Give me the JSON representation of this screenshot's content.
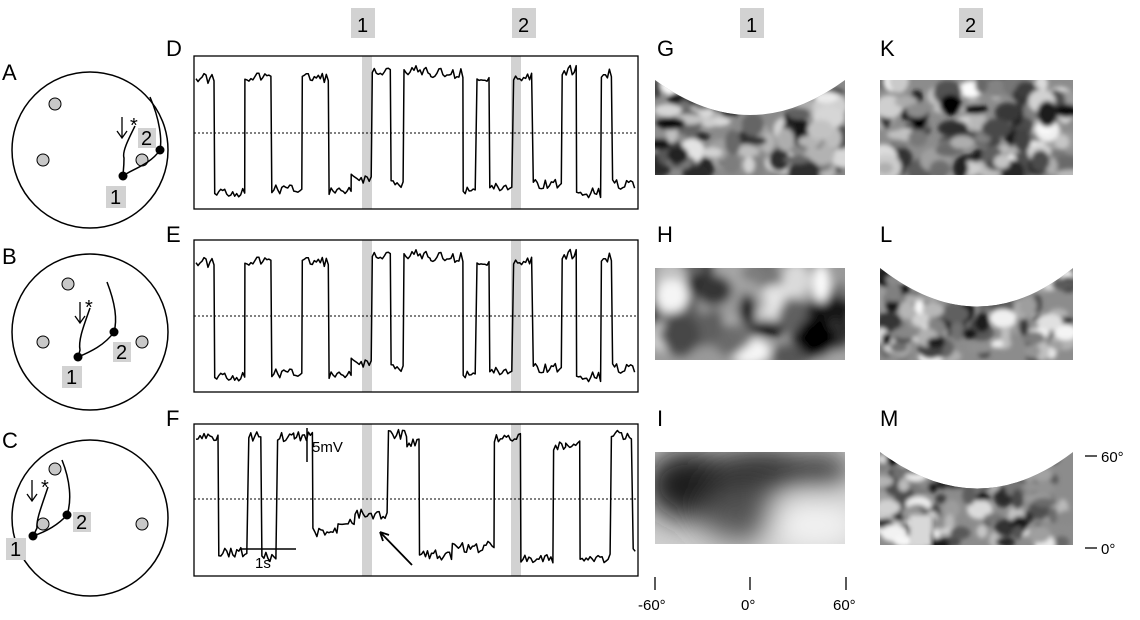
{
  "panel_letters": [
    "A",
    "B",
    "C",
    "D",
    "E",
    "F",
    "G",
    "H",
    "I",
    "K",
    "L",
    "M"
  ],
  "trace_tags": {
    "first": "1",
    "second": "2"
  },
  "arena_tags": {
    "first": "1",
    "second": "2"
  },
  "image_column_tags": {
    "first": "1",
    "second": "2"
  },
  "scale_bar": {
    "voltage": "5mV",
    "time": "1s"
  },
  "elevation_ticks": [
    "60°",
    "0°"
  ],
  "azimuth_ticks": [
    "-60°",
    "0°",
    "60°"
  ],
  "colors": {
    "highlight": "#d2d2d2",
    "trace": "#000000",
    "dot_marker": "#c8c8c8"
  }
}
